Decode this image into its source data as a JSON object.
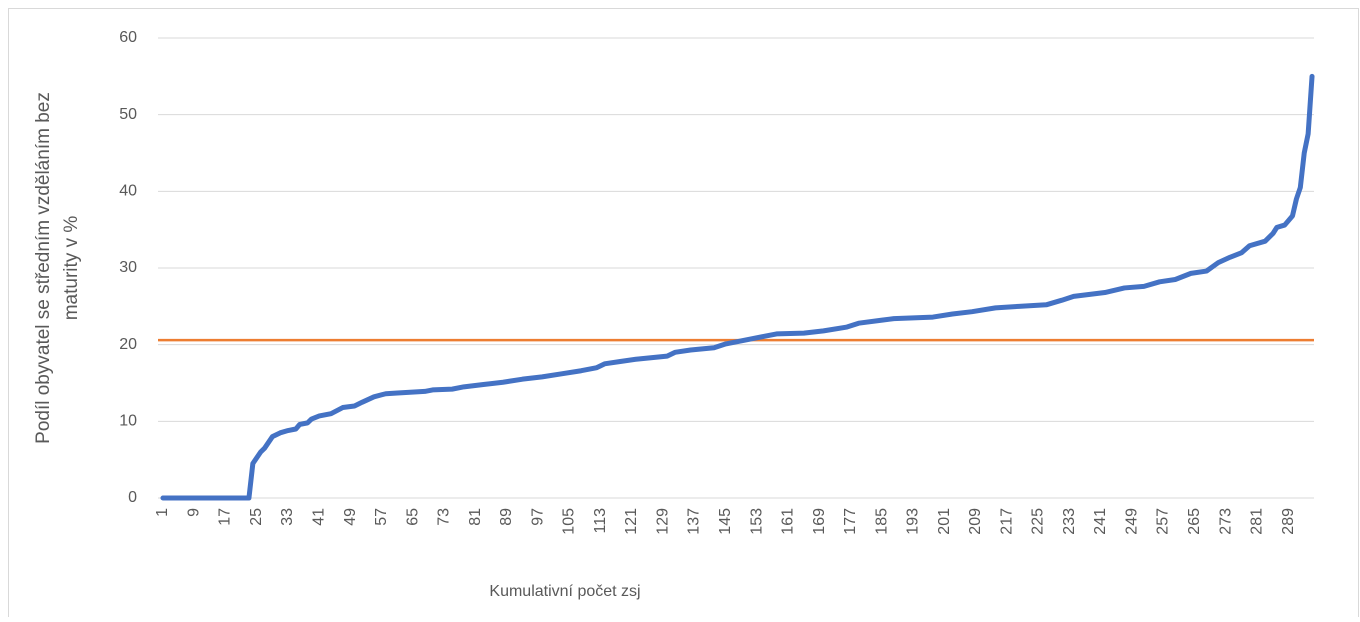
{
  "chart_data": {
    "type": "line",
    "x_label": "Kumulativní počet zsj",
    "y_label": [
      "Podíl obyvatel se středním vzděláním bez",
      "maturity v %"
    ],
    "xlim": [
      0.5,
      295.5
    ],
    "xticks": [
      1,
      9,
      17,
      25,
      33,
      41,
      49,
      57,
      65,
      73,
      81,
      89,
      97,
      105,
      113,
      121,
      129,
      137,
      145,
      153,
      161,
      169,
      177,
      185,
      193,
      201,
      209,
      217,
      225,
      233,
      241,
      249,
      257,
      265,
      273,
      281,
      289
    ],
    "ylim": [
      0,
      60
    ],
    "yticks": [
      0,
      10,
      20,
      30,
      40,
      50,
      60
    ],
    "grid": true,
    "series": [
      {
        "color": "#4472c4",
        "x": [
          1,
          23,
          24,
          26,
          27,
          29,
          31,
          33,
          35,
          36,
          38,
          39,
          41,
          44,
          47,
          50,
          52,
          55,
          58,
          61,
          68,
          70,
          75,
          78,
          83,
          88,
          93,
          98,
          103,
          108,
          112,
          114,
          118,
          122,
          130,
          132,
          136,
          142,
          145,
          150,
          155,
          158,
          165,
          170,
          176,
          179,
          185,
          188,
          198,
          203,
          208,
          214,
          220,
          227,
          231,
          234,
          242,
          247,
          252,
          256,
          260,
          264,
          268,
          271,
          274,
          277,
          279,
          283,
          285,
          286,
          288,
          290,
          291,
          292,
          293,
          294,
          295
        ],
        "values": [
          0,
          0,
          4.5,
          6,
          6.5,
          8,
          8.5,
          8.8,
          9,
          9.6,
          9.8,
          10.3,
          10.7,
          11,
          11.8,
          12,
          12.5,
          13.2,
          13.6,
          13.7,
          13.9,
          14.1,
          14.2,
          14.5,
          14.8,
          15.1,
          15.5,
          15.8,
          16.2,
          16.6,
          17,
          17.5,
          17.8,
          18.1,
          18.5,
          19,
          19.3,
          19.6,
          20.1,
          20.6,
          21.1,
          21.4,
          21.5,
          21.8,
          22.3,
          22.8,
          23.2,
          23.4,
          23.6,
          24,
          24.3,
          24.8,
          25,
          25.2,
          25.8,
          26.3,
          26.8,
          27.4,
          27.6,
          28.2,
          28.5,
          29.3,
          29.6,
          30.7,
          31.4,
          32,
          32.9,
          33.5,
          34.5,
          35.3,
          35.6,
          36.8,
          39,
          40.5,
          45,
          47.5,
          55
        ]
      }
    ],
    "hline": {
      "value": 20.6,
      "color": "#ed7d31"
    }
  }
}
